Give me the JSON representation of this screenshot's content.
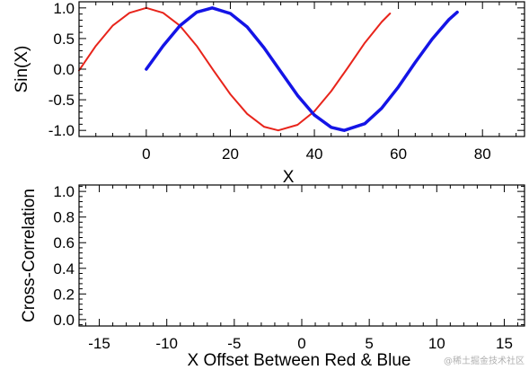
{
  "chart_data": [
    {
      "type": "line",
      "xlabel": "X",
      "ylabel": "Sin(X)",
      "xlim": [
        -16,
        90
      ],
      "ylim": [
        -1.1,
        1.1
      ],
      "xticks": [
        0,
        20,
        40,
        60,
        80
      ],
      "yticks": [
        -1.0,
        -0.5,
        0.0,
        0.5,
        1.0
      ],
      "xtick_labels": [
        "0",
        "20",
        "40",
        "60",
        "80"
      ],
      "ytick_labels": [
        "-1.0",
        "-0.5",
        "0.0",
        "0.5",
        "1.0"
      ],
      "grid": false,
      "series": [
        {
          "color": "#e8241b",
          "x": [
            -16,
            -12,
            -8,
            -4,
            0,
            4,
            8,
            12,
            16,
            20,
            24,
            28,
            31.4,
            36,
            40,
            44,
            48,
            52,
            56,
            58
          ],
          "y": [
            -0.02,
            0.38,
            0.71,
            0.92,
            1.0,
            0.92,
            0.71,
            0.38,
            -0.02,
            -0.41,
            -0.73,
            -0.94,
            -1.0,
            -0.91,
            -0.69,
            -0.36,
            0.03,
            0.43,
            0.77,
            0.91
          ]
        },
        {
          "color": "#1414e6",
          "x": [
            0,
            4,
            8,
            12,
            15.7,
            20,
            24,
            28,
            32,
            36,
            40,
            44,
            47.1,
            52,
            56,
            60,
            64,
            68,
            72,
            74
          ],
          "y": [
            0.0,
            0.38,
            0.71,
            0.93,
            1.0,
            0.91,
            0.69,
            0.35,
            -0.04,
            -0.43,
            -0.75,
            -0.95,
            -1.0,
            -0.89,
            -0.64,
            -0.29,
            0.11,
            0.49,
            0.81,
            0.93
          ]
        }
      ]
    },
    {
      "type": "line",
      "xlabel": "X Offset Between Red & Blue",
      "ylabel": "Cross-Correlation",
      "xlim": [
        -16.5,
        16.5
      ],
      "ylim": [
        -0.05,
        1.05
      ],
      "xticks": [
        -15,
        -10,
        -5,
        0,
        5,
        10,
        15
      ],
      "yticks": [
        0.0,
        0.2,
        0.4,
        0.6,
        0.8,
        1.0
      ],
      "xtick_labels": [
        "-15",
        "-10",
        "-5",
        "0",
        "5",
        "10",
        "15"
      ],
      "ytick_labels": [
        "0.0",
        "0.2",
        "0.4",
        "0.6",
        "0.8",
        "1.0"
      ],
      "grid": false,
      "series": []
    }
  ],
  "watermark": "@稀土掘金技术社区"
}
